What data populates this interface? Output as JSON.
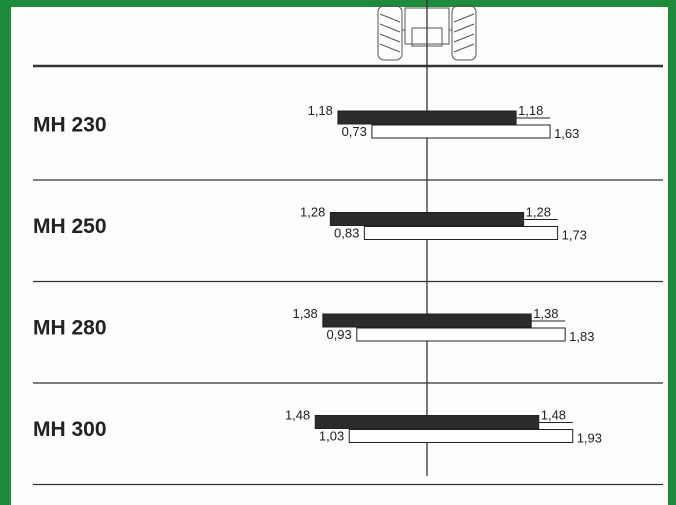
{
  "chart_data": {
    "type": "diverging-bar",
    "categories": [
      "MH 230",
      "MH 250",
      "MH 280",
      "MH 300"
    ],
    "series": [
      {
        "color": "#2b2b2b",
        "left": [
          1.18,
          1.28,
          1.38,
          1.48
        ],
        "right": [
          1.18,
          1.28,
          1.38,
          1.48
        ],
        "left_value_labels": [
          "1,18",
          "1,28",
          "1,38",
          "1,48"
        ],
        "right_value_labels": [
          "1,18",
          "1,28",
          "1,38",
          "1,48"
        ]
      },
      {
        "color": "#ffffff",
        "left": [
          0.73,
          0.83,
          0.93,
          1.03
        ],
        "right": [
          1.63,
          1.73,
          1.83,
          1.93
        ],
        "left_value_labels": [
          "0,73",
          "0,83",
          "0,93",
          "1,03"
        ],
        "right_value_labels": [
          "1,63",
          "1,73",
          "1,83",
          "1,93"
        ]
      }
    ]
  }
}
